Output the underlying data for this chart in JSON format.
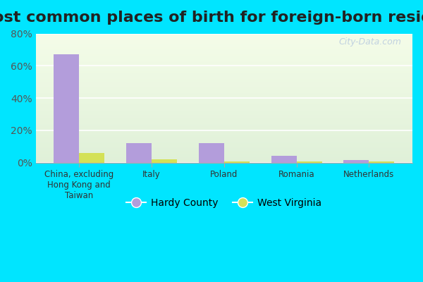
{
  "title": "Most common places of birth for foreign-born residents",
  "categories": [
    "China, excluding\nHong Kong and\nTaiwan",
    "Italy",
    "Poland",
    "Romania",
    "Netherlands"
  ],
  "hardy_county": [
    67.0,
    12.0,
    12.0,
    4.0,
    1.5
  ],
  "west_virginia": [
    6.0,
    2.0,
    0.5,
    0.5,
    0.5
  ],
  "hardy_color": "#b39ddb",
  "wv_color": "#d4e157",
  "ylim": [
    0,
    80
  ],
  "yticks": [
    0,
    20,
    40,
    60,
    80
  ],
  "ytick_labels": [
    "0%",
    "20%",
    "40%",
    "60%",
    "80%"
  ],
  "bg_outer": "#00e5ff",
  "bg_chart_top": "#f4fce8",
  "bg_chart_bottom": "#dff0d8",
  "watermark": "City-Data.com",
  "legend_hardy": "Hardy County",
  "legend_wv": "West Virginia",
  "title_fontsize": 16,
  "bar_width": 0.35
}
